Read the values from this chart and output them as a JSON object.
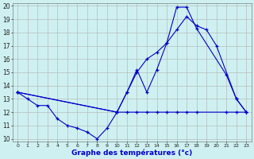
{
  "bg_color": "#cff0f0",
  "line_color": "#0000cc",
  "grid_color": "#b0b0b0",
  "xlabel": "Graphe des températures (°c)",
  "xlim": [
    -0.5,
    23.5
  ],
  "ylim": [
    9.8,
    20.2
  ],
  "yticks": [
    10,
    11,
    12,
    13,
    14,
    15,
    16,
    17,
    18,
    19,
    20
  ],
  "xticks": [
    0,
    1,
    2,
    3,
    4,
    5,
    6,
    7,
    8,
    9,
    10,
    11,
    12,
    13,
    14,
    15,
    16,
    17,
    18,
    19,
    20,
    21,
    22,
    23
  ],
  "line1_x": [
    0,
    1,
    2,
    3,
    4,
    5,
    6,
    7,
    8,
    9,
    10,
    11,
    12,
    13,
    14,
    15,
    16,
    17,
    18,
    21,
    22,
    23
  ],
  "line1_y": [
    13.5,
    13.0,
    12.5,
    12.5,
    11.5,
    11.0,
    10.8,
    10.5,
    10.0,
    10.8,
    12.0,
    12.0,
    12.0,
    12.0,
    12.0,
    12.0,
    12.0,
    12.0,
    12.0,
    12.0,
    12.0,
    12.0
  ],
  "line2_x": [
    0,
    10,
    11,
    12,
    13,
    14,
    15,
    16,
    17,
    18,
    21,
    22,
    23
  ],
  "line2_y": [
    13.5,
    12.0,
    13.5,
    15.2,
    13.5,
    15.2,
    17.2,
    19.9,
    19.9,
    18.3,
    14.8,
    13.0,
    12.0
  ],
  "line3_x": [
    0,
    10,
    11,
    12,
    13,
    14,
    15,
    16,
    17,
    18,
    19,
    20,
    22,
    23
  ],
  "line3_y": [
    13.5,
    12.0,
    13.5,
    15.0,
    16.0,
    16.5,
    17.2,
    18.2,
    19.2,
    18.5,
    18.2,
    17.0,
    13.0,
    12.0
  ]
}
